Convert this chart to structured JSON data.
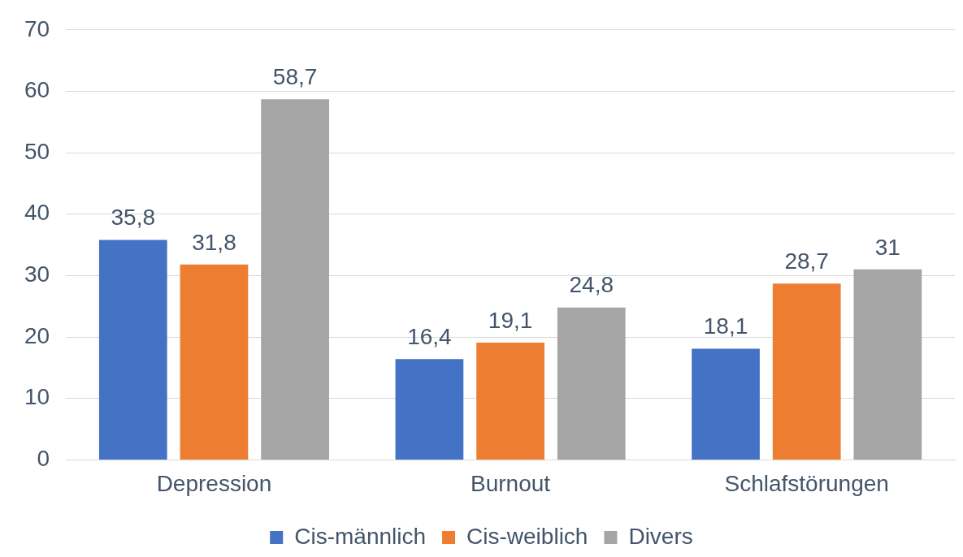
{
  "chart_data": {
    "type": "bar",
    "categories": [
      "Depression",
      "Burnout",
      "Schlafstörungen"
    ],
    "series": [
      {
        "name": "Cis-männlich",
        "color": "#4472c4",
        "values": [
          35.8,
          16.4,
          18.1
        ],
        "value_labels": [
          "35,8",
          "16,4",
          "18,1"
        ]
      },
      {
        "name": "Cis-weiblich",
        "color": "#ed7d31",
        "values": [
          31.8,
          19.1,
          28.7
        ],
        "value_labels": [
          "31,8",
          "19,1",
          "28,7"
        ]
      },
      {
        "name": "Divers",
        "color": "#a5a5a5",
        "values": [
          58.7,
          24.8,
          31
        ],
        "value_labels": [
          "58,7",
          "24,8",
          "31"
        ]
      }
    ],
    "ylim": [
      0,
      70
    ],
    "yticks": [
      0,
      10,
      20,
      30,
      40,
      50,
      60,
      70
    ],
    "grid": "y",
    "legend": "bottom"
  }
}
